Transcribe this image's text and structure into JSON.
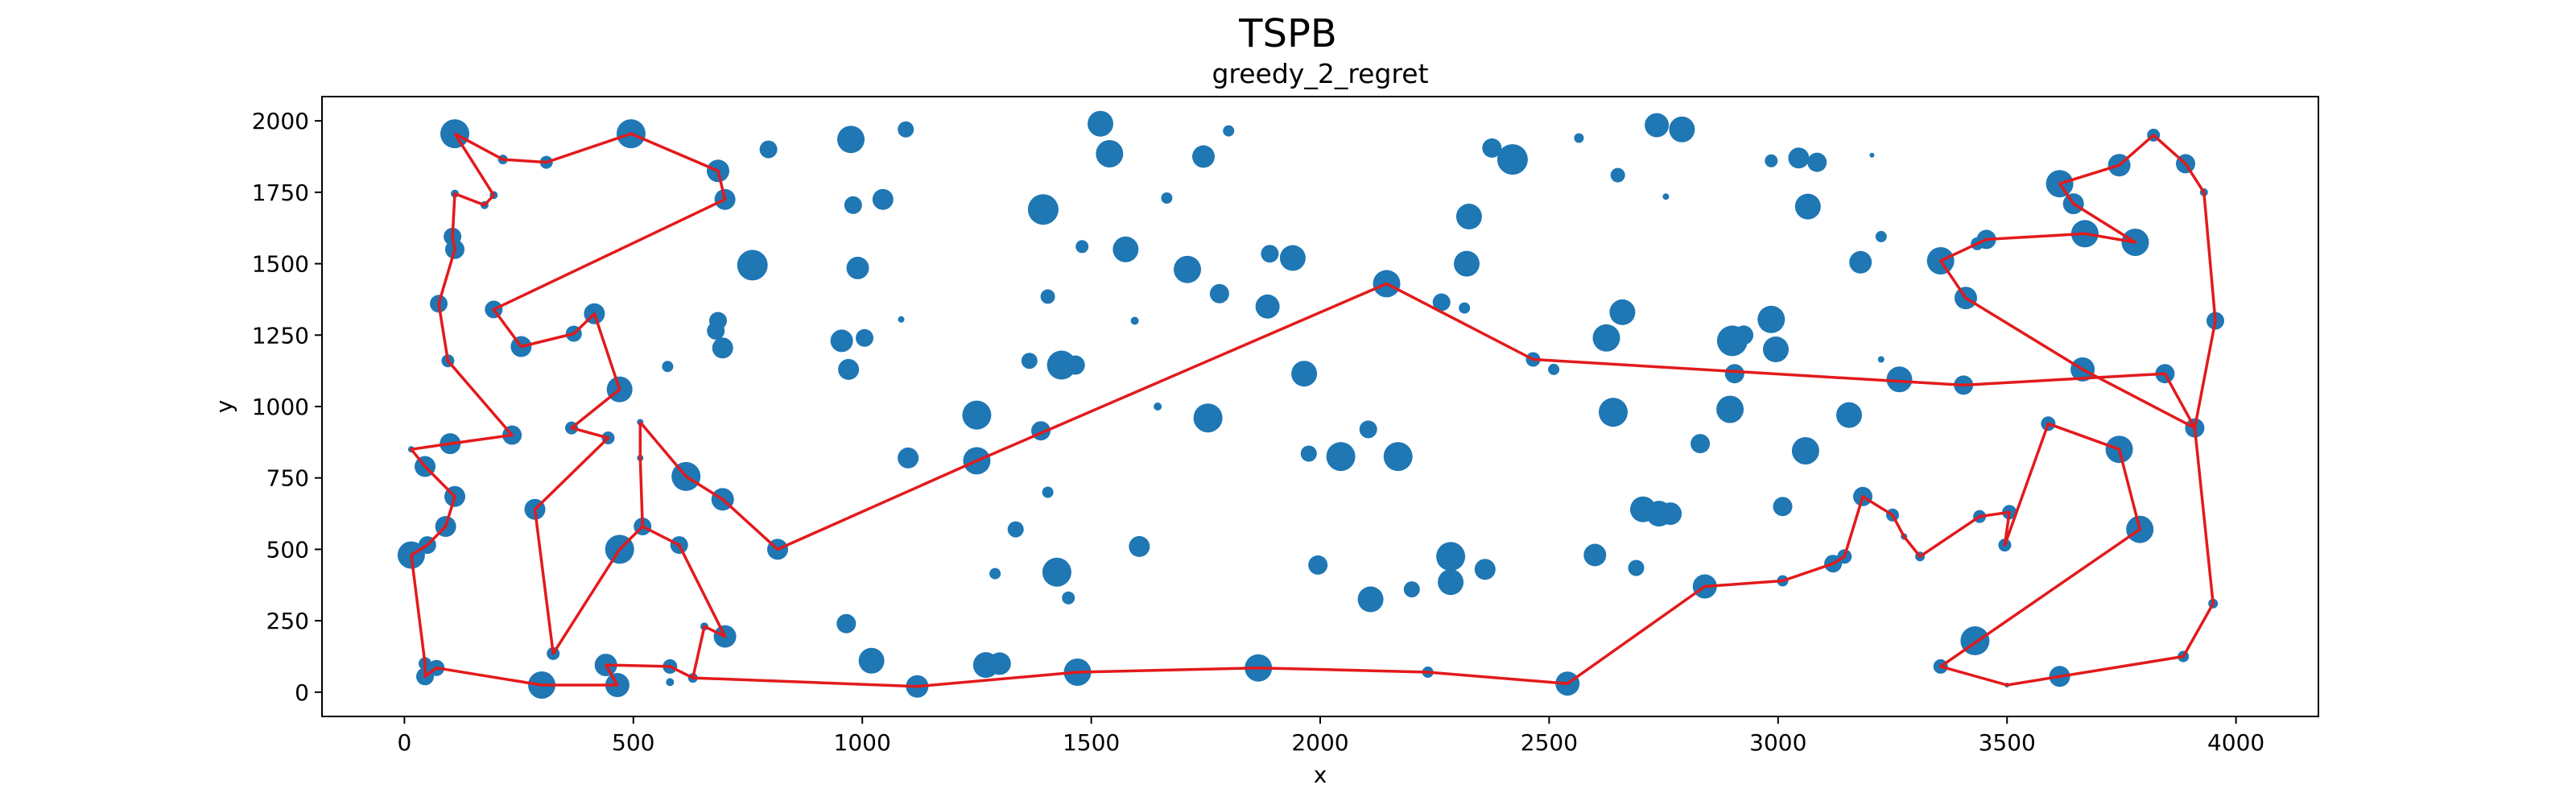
{
  "chart_data": {
    "type": "scatter",
    "title": "TSPB",
    "subtitle": "greedy_2_regret",
    "xlabel": "x",
    "ylabel": "y",
    "xlim": [
      -180,
      4180
    ],
    "ylim": [
      -85,
      2085
    ],
    "xticks": [
      0,
      500,
      1000,
      1500,
      2000,
      2500,
      3000,
      3500,
      4000
    ],
    "yticks": [
      0,
      250,
      500,
      750,
      1000,
      1250,
      1500,
      1750,
      2000
    ],
    "grid": false,
    "point_color": "#1f77b4",
    "route_color": "#e31a1c",
    "points": [
      {
        "x": 110,
        "y": 1955,
        "s": 18
      },
      {
        "x": 215,
        "y": 1865,
        "s": 6
      },
      {
        "x": 310,
        "y": 1855,
        "s": 8
      },
      {
        "x": 495,
        "y": 1955,
        "s": 18
      },
      {
        "x": 685,
        "y": 1825,
        "s": 14
      },
      {
        "x": 700,
        "y": 1725,
        "s": 13
      },
      {
        "x": 195,
        "y": 1740,
        "s": 5
      },
      {
        "x": 175,
        "y": 1705,
        "s": 5
      },
      {
        "x": 110,
        "y": 1745,
        "s": 5
      },
      {
        "x": 105,
        "y": 1595,
        "s": 11
      },
      {
        "x": 110,
        "y": 1550,
        "s": 12
      },
      {
        "x": 75,
        "y": 1360,
        "s": 11
      },
      {
        "x": 195,
        "y": 1340,
        "s": 11
      },
      {
        "x": 255,
        "y": 1210,
        "s": 13
      },
      {
        "x": 370,
        "y": 1255,
        "s": 10
      },
      {
        "x": 415,
        "y": 1325,
        "s": 13
      },
      {
        "x": 95,
        "y": 1160,
        "s": 8
      },
      {
        "x": 470,
        "y": 1060,
        "s": 16
      },
      {
        "x": 235,
        "y": 900,
        "s": 12
      },
      {
        "x": 100,
        "y": 870,
        "s": 13
      },
      {
        "x": 15,
        "y": 850,
        "s": 4
      },
      {
        "x": 45,
        "y": 790,
        "s": 13
      },
      {
        "x": 110,
        "y": 685,
        "s": 13
      },
      {
        "x": 90,
        "y": 580,
        "s": 13
      },
      {
        "x": 50,
        "y": 515,
        "s": 11
      },
      {
        "x": 15,
        "y": 480,
        "s": 17
      },
      {
        "x": 45,
        "y": 100,
        "s": 8
      },
      {
        "x": 70,
        "y": 85,
        "s": 10
      },
      {
        "x": 45,
        "y": 55,
        "s": 11
      },
      {
        "x": 300,
        "y": 25,
        "s": 17
      },
      {
        "x": 325,
        "y": 135,
        "s": 8
      },
      {
        "x": 440,
        "y": 95,
        "s": 14
      },
      {
        "x": 465,
        "y": 25,
        "s": 15
      },
      {
        "x": 580,
        "y": 90,
        "s": 9
      },
      {
        "x": 580,
        "y": 35,
        "s": 5
      },
      {
        "x": 630,
        "y": 50,
        "s": 6
      },
      {
        "x": 655,
        "y": 230,
        "s": 5
      },
      {
        "x": 700,
        "y": 195,
        "s": 14
      },
      {
        "x": 600,
        "y": 515,
        "s": 11
      },
      {
        "x": 520,
        "y": 580,
        "s": 11
      },
      {
        "x": 470,
        "y": 500,
        "s": 18
      },
      {
        "x": 285,
        "y": 640,
        "s": 13
      },
      {
        "x": 365,
        "y": 925,
        "s": 8
      },
      {
        "x": 445,
        "y": 890,
        "s": 8
      },
      {
        "x": 515,
        "y": 945,
        "s": 4
      },
      {
        "x": 515,
        "y": 820,
        "s": 4
      },
      {
        "x": 615,
        "y": 755,
        "s": 18
      },
      {
        "x": 695,
        "y": 675,
        "s": 14
      },
      {
        "x": 815,
        "y": 500,
        "s": 13
      },
      {
        "x": 1250,
        "y": 810,
        "s": 17
      },
      {
        "x": 2145,
        "y": 1430,
        "s": 17
      },
      {
        "x": 2465,
        "y": 1165,
        "s": 9
      },
      {
        "x": 3405,
        "y": 1075,
        "s": 12
      },
      {
        "x": 3845,
        "y": 1115,
        "s": 12
      },
      {
        "x": 3910,
        "y": 925,
        "s": 12
      },
      {
        "x": 3950,
        "y": 310,
        "s": 6
      },
      {
        "x": 3885,
        "y": 125,
        "s": 7
      },
      {
        "x": 3615,
        "y": 55,
        "s": 13
      },
      {
        "x": 3500,
        "y": 25,
        "s": 0
      },
      {
        "x": 3355,
        "y": 90,
        "s": 9
      },
      {
        "x": 3790,
        "y": 570,
        "s": 17
      },
      {
        "x": 3745,
        "y": 850,
        "s": 17
      },
      {
        "x": 3590,
        "y": 940,
        "s": 9
      },
      {
        "x": 3495,
        "y": 515,
        "s": 8
      },
      {
        "x": 3505,
        "y": 630,
        "s": 9
      },
      {
        "x": 3440,
        "y": 615,
        "s": 8
      },
      {
        "x": 3310,
        "y": 475,
        "s": 6
      },
      {
        "x": 3275,
        "y": 545,
        "s": 4
      },
      {
        "x": 3250,
        "y": 620,
        "s": 8
      },
      {
        "x": 3185,
        "y": 685,
        "s": 12
      },
      {
        "x": 3145,
        "y": 475,
        "s": 9
      },
      {
        "x": 3120,
        "y": 450,
        "s": 11
      },
      {
        "x": 3010,
        "y": 390,
        "s": 7
      },
      {
        "x": 2840,
        "y": 370,
        "s": 15
      },
      {
        "x": 2540,
        "y": 30,
        "s": 15
      },
      {
        "x": 2235,
        "y": 70,
        "s": 7
      },
      {
        "x": 1865,
        "y": 85,
        "s": 17
      },
      {
        "x": 1470,
        "y": 70,
        "s": 17
      },
      {
        "x": 1120,
        "y": 20,
        "s": 14
      },
      {
        "x": 3955,
        "y": 1300,
        "s": 11
      },
      {
        "x": 3930,
        "y": 1750,
        "s": 5
      },
      {
        "x": 3890,
        "y": 1850,
        "s": 12
      },
      {
        "x": 3820,
        "y": 1950,
        "s": 8
      },
      {
        "x": 3745,
        "y": 1845,
        "s": 14
      },
      {
        "x": 3615,
        "y": 1780,
        "s": 17
      },
      {
        "x": 3645,
        "y": 1710,
        "s": 13
      },
      {
        "x": 3780,
        "y": 1575,
        "s": 17
      },
      {
        "x": 3670,
        "y": 1605,
        "s": 17
      },
      {
        "x": 3455,
        "y": 1585,
        "s": 12
      },
      {
        "x": 3435,
        "y": 1570,
        "s": 8
      },
      {
        "x": 3355,
        "y": 1510,
        "s": 17
      },
      {
        "x": 3410,
        "y": 1380,
        "s": 14
      },
      {
        "x": 3665,
        "y": 1130,
        "s": 15
      },
      {
        "x": 3265,
        "y": 1095,
        "s": 16
      },
      {
        "x": 3430,
        "y": 180,
        "s": 18
      },
      {
        "x": 685,
        "y": 1300,
        "s": 11
      },
      {
        "x": 680,
        "y": 1265,
        "s": 11
      },
      {
        "x": 695,
        "y": 1205,
        "s": 13
      },
      {
        "x": 760,
        "y": 1495,
        "s": 19
      },
      {
        "x": 795,
        "y": 1900,
        "s": 11
      },
      {
        "x": 975,
        "y": 1935,
        "s": 17
      },
      {
        "x": 980,
        "y": 1705,
        "s": 11
      },
      {
        "x": 1045,
        "y": 1725,
        "s": 13
      },
      {
        "x": 1095,
        "y": 1970,
        "s": 10
      },
      {
        "x": 990,
        "y": 1485,
        "s": 14
      },
      {
        "x": 1085,
        "y": 1305,
        "s": 4
      },
      {
        "x": 955,
        "y": 1230,
        "s": 14
      },
      {
        "x": 1005,
        "y": 1240,
        "s": 11
      },
      {
        "x": 970,
        "y": 1130,
        "s": 13
      },
      {
        "x": 575,
        "y": 1140,
        "s": 7
      },
      {
        "x": 1100,
        "y": 820,
        "s": 13
      },
      {
        "x": 1250,
        "y": 970,
        "s": 18
      },
      {
        "x": 1390,
        "y": 915,
        "s": 12
      },
      {
        "x": 1395,
        "y": 1690,
        "s": 19
      },
      {
        "x": 1405,
        "y": 1385,
        "s": 9
      },
      {
        "x": 1365,
        "y": 1160,
        "s": 10
      },
      {
        "x": 1435,
        "y": 1145,
        "s": 18
      },
      {
        "x": 1465,
        "y": 1145,
        "s": 12
      },
      {
        "x": 1520,
        "y": 1990,
        "s": 16
      },
      {
        "x": 1540,
        "y": 1885,
        "s": 17
      },
      {
        "x": 1480,
        "y": 1560,
        "s": 8
      },
      {
        "x": 1575,
        "y": 1550,
        "s": 16
      },
      {
        "x": 1595,
        "y": 1300,
        "s": 5
      },
      {
        "x": 1505,
        "y": 1995,
        "s": 0
      },
      {
        "x": 1665,
        "y": 1730,
        "s": 7
      },
      {
        "x": 1745,
        "y": 1875,
        "s": 14
      },
      {
        "x": 1800,
        "y": 1965,
        "s": 7
      },
      {
        "x": 1710,
        "y": 1480,
        "s": 17
      },
      {
        "x": 1780,
        "y": 1395,
        "s": 12
      },
      {
        "x": 1890,
        "y": 1535,
        "s": 11
      },
      {
        "x": 1940,
        "y": 1520,
        "s": 16
      },
      {
        "x": 1885,
        "y": 1350,
        "s": 15
      },
      {
        "x": 1755,
        "y": 960,
        "s": 18
      },
      {
        "x": 1645,
        "y": 1000,
        "s": 5
      },
      {
        "x": 1965,
        "y": 1115,
        "s": 16
      },
      {
        "x": 1975,
        "y": 835,
        "s": 10
      },
      {
        "x": 2045,
        "y": 825,
        "s": 18
      },
      {
        "x": 2105,
        "y": 920,
        "s": 11
      },
      {
        "x": 2170,
        "y": 825,
        "s": 18
      },
      {
        "x": 1405,
        "y": 700,
        "s": 7
      },
      {
        "x": 1335,
        "y": 570,
        "s": 10
      },
      {
        "x": 1290,
        "y": 415,
        "s": 7
      },
      {
        "x": 1425,
        "y": 420,
        "s": 18
      },
      {
        "x": 1450,
        "y": 330,
        "s": 8
      },
      {
        "x": 1605,
        "y": 510,
        "s": 13
      },
      {
        "x": 1995,
        "y": 445,
        "s": 12
      },
      {
        "x": 2110,
        "y": 325,
        "s": 16
      },
      {
        "x": 2200,
        "y": 360,
        "s": 10
      },
      {
        "x": 2285,
        "y": 475,
        "s": 18
      },
      {
        "x": 2285,
        "y": 385,
        "s": 16
      },
      {
        "x": 2360,
        "y": 430,
        "s": 13
      },
      {
        "x": 965,
        "y": 240,
        "s": 12
      },
      {
        "x": 1020,
        "y": 110,
        "s": 16
      },
      {
        "x": 1270,
        "y": 95,
        "s": 16
      },
      {
        "x": 1300,
        "y": 100,
        "s": 14
      },
      {
        "x": 2265,
        "y": 1365,
        "s": 11
      },
      {
        "x": 2315,
        "y": 1345,
        "s": 7
      },
      {
        "x": 2320,
        "y": 1500,
        "s": 16
      },
      {
        "x": 2325,
        "y": 1665,
        "s": 16
      },
      {
        "x": 2375,
        "y": 1905,
        "s": 12
      },
      {
        "x": 2420,
        "y": 1865,
        "s": 19
      },
      {
        "x": 2565,
        "y": 1940,
        "s": 6
      },
      {
        "x": 2735,
        "y": 1985,
        "s": 15
      },
      {
        "x": 2790,
        "y": 1970,
        "s": 16
      },
      {
        "x": 2650,
        "y": 1810,
        "s": 9
      },
      {
        "x": 2755,
        "y": 1735,
        "s": 4
      },
      {
        "x": 2660,
        "y": 1330,
        "s": 16
      },
      {
        "x": 2625,
        "y": 1240,
        "s": 17
      },
      {
        "x": 2510,
        "y": 1130,
        "s": 7
      },
      {
        "x": 2640,
        "y": 980,
        "s": 18
      },
      {
        "x": 2830,
        "y": 870,
        "s": 12
      },
      {
        "x": 2900,
        "y": 1230,
        "s": 19
      },
      {
        "x": 2925,
        "y": 1250,
        "s": 12
      },
      {
        "x": 2905,
        "y": 1115,
        "s": 12
      },
      {
        "x": 2985,
        "y": 1305,
        "s": 17
      },
      {
        "x": 2995,
        "y": 1200,
        "s": 16
      },
      {
        "x": 2895,
        "y": 990,
        "s": 17
      },
      {
        "x": 3060,
        "y": 845,
        "s": 17
      },
      {
        "x": 3010,
        "y": 650,
        "s": 12
      },
      {
        "x": 3155,
        "y": 970,
        "s": 16
      },
      {
        "x": 3180,
        "y": 1505,
        "s": 14
      },
      {
        "x": 3225,
        "y": 1595,
        "s": 7
      },
      {
        "x": 3225,
        "y": 1165,
        "s": 4
      },
      {
        "x": 2985,
        "y": 1860,
        "s": 8
      },
      {
        "x": 3045,
        "y": 1870,
        "s": 13
      },
      {
        "x": 3085,
        "y": 1855,
        "s": 12
      },
      {
        "x": 3205,
        "y": 1880,
        "s": 3
      },
      {
        "x": 3065,
        "y": 1700,
        "s": 16
      },
      {
        "x": 2705,
        "y": 640,
        "s": 16
      },
      {
        "x": 2740,
        "y": 625,
        "s": 16
      },
      {
        "x": 2765,
        "y": 625,
        "s": 14
      },
      {
        "x": 2690,
        "y": 435,
        "s": 10
      },
      {
        "x": 2600,
        "y": 480,
        "s": 14
      }
    ],
    "route": [
      [
        110,
        1955
      ],
      [
        215,
        1865
      ],
      [
        310,
        1855
      ],
      [
        495,
        1955
      ],
      [
        685,
        1825
      ],
      [
        700,
        1725
      ],
      [
        195,
        1340
      ],
      [
        255,
        1210
      ],
      [
        370,
        1255
      ],
      [
        415,
        1325
      ],
      [
        470,
        1060
      ],
      [
        365,
        925
      ],
      [
        445,
        890
      ],
      [
        285,
        640
      ],
      [
        325,
        135
      ],
      [
        470,
        500
      ],
      [
        520,
        580
      ],
      [
        600,
        515
      ],
      [
        700,
        195
      ],
      [
        655,
        230
      ],
      [
        630,
        50
      ],
      [
        580,
        90
      ],
      [
        440,
        95
      ],
      [
        465,
        25
      ],
      [
        300,
        25
      ],
      [
        70,
        85
      ],
      [
        45,
        55
      ],
      [
        45,
        100
      ],
      [
        15,
        480
      ],
      [
        50,
        515
      ],
      [
        90,
        580
      ],
      [
        110,
        685
      ],
      [
        45,
        790
      ],
      [
        15,
        850
      ],
      [
        100,
        870
      ],
      [
        235,
        900
      ],
      [
        95,
        1160
      ],
      [
        75,
        1360
      ],
      [
        110,
        1550
      ],
      [
        105,
        1595
      ],
      [
        110,
        1745
      ],
      [
        175,
        1705
      ],
      [
        195,
        1740
      ],
      [
        110,
        1955
      ]
    ],
    "route2": [
      [
        515,
        945
      ],
      [
        515,
        820
      ],
      [
        520,
        580
      ]
    ],
    "route3": [
      [
        515,
        945
      ],
      [
        615,
        755
      ],
      [
        695,
        675
      ],
      [
        815,
        500
      ],
      [
        1250,
        810
      ],
      [
        2145,
        1430
      ],
      [
        2465,
        1165
      ],
      [
        3405,
        1075
      ],
      [
        3845,
        1115
      ],
      [
        3910,
        925
      ],
      [
        3665,
        1130
      ],
      [
        3410,
        1380
      ],
      [
        3355,
        1510
      ],
      [
        3435,
        1570
      ],
      [
        3455,
        1585
      ],
      [
        3670,
        1605
      ],
      [
        3780,
        1575
      ],
      [
        3645,
        1710
      ],
      [
        3615,
        1780
      ],
      [
        3745,
        1845
      ],
      [
        3820,
        1950
      ],
      [
        3890,
        1850
      ],
      [
        3930,
        1750
      ],
      [
        3955,
        1300
      ],
      [
        3910,
        925
      ],
      [
        3950,
        310
      ],
      [
        3885,
        125
      ],
      [
        3500,
        25
      ],
      [
        3355,
        90
      ],
      [
        3790,
        570
      ],
      [
        3745,
        850
      ],
      [
        3590,
        940
      ],
      [
        3495,
        515
      ],
      [
        3505,
        630
      ],
      [
        3440,
        615
      ],
      [
        3310,
        475
      ],
      [
        3275,
        545
      ],
      [
        3250,
        620
      ],
      [
        3185,
        685
      ],
      [
        3145,
        475
      ],
      [
        3120,
        450
      ],
      [
        3010,
        390
      ],
      [
        2840,
        370
      ],
      [
        2540,
        30
      ],
      [
        2235,
        70
      ],
      [
        1865,
        85
      ],
      [
        1470,
        70
      ],
      [
        1120,
        20
      ],
      [
        630,
        50
      ]
    ]
  }
}
